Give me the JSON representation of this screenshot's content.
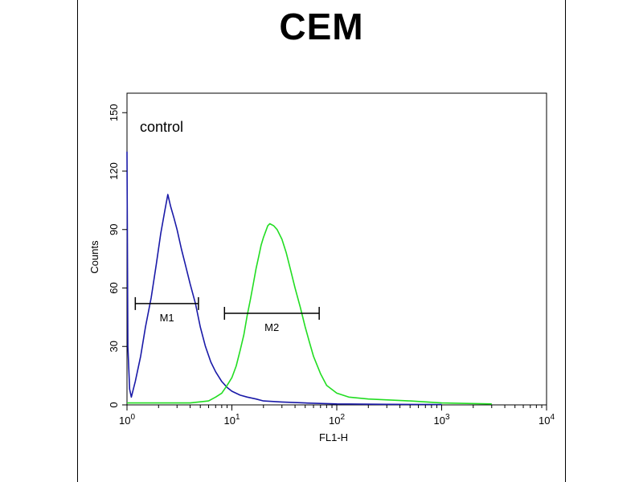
{
  "chart_data": {
    "type": "line",
    "title": "CEM",
    "xlabel": "FL1-H",
    "ylabel": "Counts",
    "x_scale": "log",
    "xlim": [
      1,
      10000
    ],
    "ylim": [
      0,
      160
    ],
    "x_ticks": [
      {
        "value": 1,
        "base": "10",
        "exp": "0"
      },
      {
        "value": 10,
        "base": "10",
        "exp": "1"
      },
      {
        "value": 100,
        "base": "10",
        "exp": "2"
      },
      {
        "value": 1000,
        "base": "10",
        "exp": "3"
      },
      {
        "value": 10000,
        "base": "10",
        "exp": "4"
      }
    ],
    "y_ticks": [
      0,
      30,
      60,
      90,
      120,
      150
    ],
    "annotation": "control",
    "series": [
      {
        "color": "#1a1aa8",
        "x": [
          1,
          1.02,
          1.06,
          1.1,
          1.2,
          1.35,
          1.5,
          1.7,
          1.9,
          2.1,
          2.3,
          2.45,
          2.6,
          2.8,
          3.0,
          3.3,
          3.6,
          4.0,
          4.5,
          5.0,
          5.6,
          6.3,
          7.0,
          8.0,
          9.0,
          10,
          12,
          14,
          17,
          20,
          30,
          50,
          100,
          300,
          1000
        ],
        "y": [
          130,
          30,
          8,
          4,
          12,
          25,
          40,
          55,
          72,
          88,
          100,
          108,
          102,
          96,
          90,
          80,
          72,
          62,
          52,
          40,
          30,
          22,
          17,
          12,
          9,
          7,
          5,
          4,
          3,
          2,
          1.5,
          1,
          0.5,
          0.3,
          0.2
        ]
      },
      {
        "color": "#22dd22",
        "x": [
          1,
          2,
          4,
          6,
          7,
          8,
          9,
          10,
          11,
          12,
          13,
          14,
          15,
          16,
          17,
          18,
          19,
          20,
          21,
          22,
          23,
          25,
          27,
          30,
          33,
          36,
          40,
          45,
          50,
          55,
          60,
          70,
          80,
          100,
          130,
          200,
          500,
          1000,
          3000
        ],
        "y": [
          1,
          1,
          1,
          2,
          4,
          6,
          10,
          14,
          20,
          28,
          36,
          46,
          54,
          62,
          70,
          76,
          82,
          86,
          89,
          92,
          93,
          92,
          90,
          85,
          78,
          70,
          60,
          50,
          40,
          32,
          25,
          16,
          10,
          6,
          4,
          3,
          2,
          1,
          0.5
        ]
      }
    ],
    "markers": [
      {
        "label": "M1",
        "x_start": 1.2,
        "x_end": 4.8,
        "y": 52,
        "color": "#000000"
      },
      {
        "label": "M2",
        "x_start": 8.5,
        "x_end": 68,
        "y": 47,
        "color": "#000000"
      }
    ]
  }
}
